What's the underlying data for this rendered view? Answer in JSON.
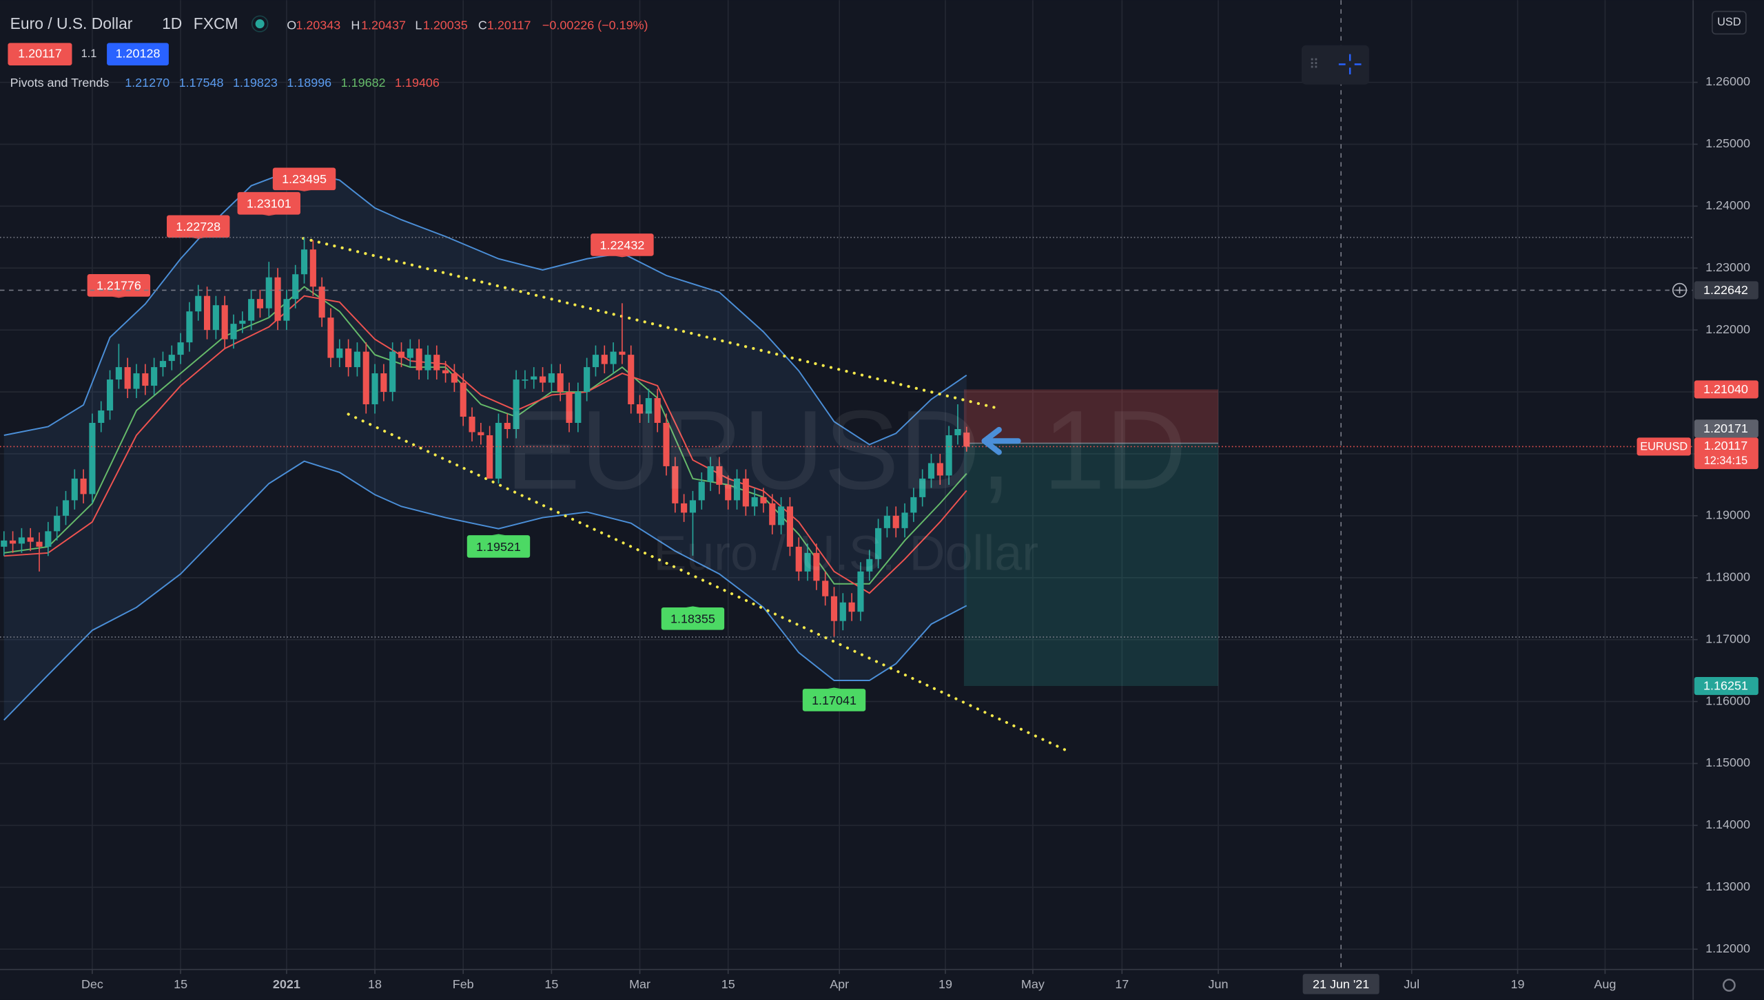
{
  "chart_data": {
    "type": "candlestick",
    "symbol": "Euro / U.S. Dollar",
    "interval": "1D",
    "source": "FXCM",
    "ohlc_letters": [
      "O",
      "H",
      "L",
      "C"
    ],
    "change": "−0.00226 (−0.19%)",
    "spread": 1.1,
    "ask": 1.20128,
    "indicator": {
      "name": "Pivots and Trends",
      "values": [
        {
          "value": 1.2127,
          "label": "1.21270"
        },
        1.17548,
        1.19823,
        1.18996,
        1.19682,
        1.19406
      ],
      "colors": [
        "#5b9cf0",
        "#5b9cf0",
        "#5b9cf0",
        "#5b9cf0",
        "#66bb6a",
        "#ef5350"
      ]
    },
    "watermark": "EURUSD, 1D",
    "watermark_sub": "Euro / U.S. Dollar",
    "symbol_label": "EURUSD",
    "countdown": "12:34:15",
    "currency": "USD",
    "up_color": "#26a69a",
    "down_color": "#ef5350",
    "grid": true,
    "xlim": [
      -10.45,
      181.27
    ],
    "ylim": [
      1.11673,
      1.27326
    ],
    "xticks": [
      {
        "value": 0,
        "label": "Dec"
      },
      {
        "value": 10,
        "label": "15"
      },
      {
        "value": 22,
        "label": "2021"
      },
      {
        "value": 32,
        "label": "18"
      },
      {
        "value": 42,
        "label": "Feb"
      },
      {
        "value": 52,
        "label": "15"
      },
      {
        "value": 62,
        "label": "Mar"
      },
      {
        "value": 72,
        "label": "15"
      },
      {
        "value": 84.6,
        "label": "Apr"
      },
      {
        "value": 96.6,
        "label": "19"
      },
      {
        "value": 106.5,
        "label": "May"
      },
      {
        "value": 116.6,
        "label": "17"
      },
      {
        "value": 127.5,
        "label": "Jun"
      },
      {
        "value": 149.4,
        "label": "Jul"
      },
      {
        "value": 161.4,
        "label": "19"
      },
      {
        "value": 171.3,
        "label": "Aug"
      }
    ],
    "yticks": [
      {
        "value": 1.12,
        "label": "1.12000"
      },
      {
        "value": 1.13,
        "label": "1.13000"
      },
      {
        "value": 1.14,
        "label": "1.14000"
      },
      {
        "value": 1.15,
        "label": "1.15000"
      },
      {
        "value": 1.16,
        "label": "1.16000"
      },
      {
        "value": 1.17,
        "label": "1.17000"
      },
      {
        "value": 1.18,
        "label": "1.18000"
      },
      {
        "value": 1.19,
        "label": "1.19000"
      },
      {
        "value": 1.2,
        "label": "1.20000"
      },
      {
        "value": 1.21,
        "label": "1.21000"
      },
      {
        "value": 1.22,
        "label": "1.22000"
      },
      {
        "value": 1.23,
        "label": "1.23000"
      },
      {
        "value": 1.24,
        "label": "1.24000"
      },
      {
        "value": 1.25,
        "label": "1.25000"
      },
      {
        "value": 1.26,
        "label": "1.26000"
      }
    ],
    "x": [
      -10,
      -9,
      -8,
      -7,
      -6,
      -5,
      -4,
      -3,
      -2,
      -1,
      0,
      1,
      2,
      3,
      4,
      5,
      6,
      7,
      8,
      9,
      10,
      11,
      12,
      13,
      14,
      15,
      16,
      17,
      18,
      19,
      20,
      21,
      22,
      23,
      24,
      25,
      26,
      27,
      28,
      29,
      30,
      31,
      32,
      33,
      34,
      35,
      36,
      37,
      38,
      39,
      40,
      41,
      42,
      43,
      44,
      45,
      46,
      47,
      48,
      49,
      50,
      51,
      52,
      53,
      54,
      55,
      56,
      57,
      58,
      59,
      60,
      61,
      62,
      63,
      64,
      65,
      66,
      67,
      68,
      69,
      70,
      71,
      72,
      73,
      74,
      75,
      76,
      77,
      78,
      79,
      80,
      81,
      82,
      83,
      84,
      85,
      86,
      87,
      88,
      89,
      90,
      91,
      92,
      93,
      94,
      95,
      96,
      97,
      98,
      99
    ],
    "candles": [
      [
        1.185,
        1.1875,
        1.1835,
        1.186
      ],
      [
        1.186,
        1.1875,
        1.184,
        1.1855
      ],
      [
        1.1855,
        1.188,
        1.184,
        1.1865
      ],
      [
        1.1865,
        1.188,
        1.1843,
        1.1858
      ],
      [
        1.1858,
        1.1873,
        1.181,
        1.185
      ],
      [
        1.185,
        1.189,
        1.1835,
        1.1875
      ],
      [
        1.1875,
        1.1915,
        1.186,
        1.19
      ],
      [
        1.19,
        1.194,
        1.1885,
        1.1925
      ],
      [
        1.1925,
        1.1975,
        1.191,
        1.196
      ],
      [
        1.196,
        1.1975,
        1.192,
        1.1935
      ],
      [
        1.1935,
        1.2065,
        1.192,
        1.205
      ],
      [
        1.205,
        1.2085,
        1.2035,
        1.207
      ],
      [
        1.207,
        1.2135,
        1.2055,
        1.212
      ],
      [
        1.212,
        1.21776,
        1.2105,
        1.214
      ],
      [
        1.214,
        1.2155,
        1.209,
        1.2105
      ],
      [
        1.2105,
        1.2145,
        1.209,
        1.213
      ],
      [
        1.213,
        1.2145,
        1.2095,
        1.211
      ],
      [
        1.211,
        1.2155,
        1.2095,
        1.214
      ],
      [
        1.214,
        1.2165,
        1.2125,
        1.215
      ],
      [
        1.215,
        1.2175,
        1.2135,
        1.216
      ],
      [
        1.216,
        1.2195,
        1.2145,
        1.218
      ],
      [
        1.218,
        1.2245,
        1.2165,
        1.223
      ],
      [
        1.223,
        1.22728,
        1.2215,
        1.2255
      ],
      [
        1.2255,
        1.227,
        1.2185,
        1.22
      ],
      [
        1.22,
        1.2255,
        1.2185,
        1.224
      ],
      [
        1.224,
        1.2255,
        1.217,
        1.2185
      ],
      [
        1.2185,
        1.2225,
        1.217,
        1.221
      ],
      [
        1.221,
        1.223,
        1.2195,
        1.2215
      ],
      [
        1.2215,
        1.2265,
        1.22,
        1.225
      ],
      [
        1.225,
        1.2265,
        1.222,
        1.2235
      ],
      [
        1.2235,
        1.23101,
        1.222,
        1.2285
      ],
      [
        1.2285,
        1.23,
        1.22,
        1.2215
      ],
      [
        1.2215,
        1.2265,
        1.22,
        1.225
      ],
      [
        1.225,
        1.2305,
        1.2235,
        1.229
      ],
      [
        1.229,
        1.23495,
        1.2275,
        1.233
      ],
      [
        1.233,
        1.2345,
        1.2255,
        1.227
      ],
      [
        1.227,
        1.2285,
        1.2205,
        1.222
      ],
      [
        1.222,
        1.2235,
        1.214,
        1.2155
      ],
      [
        1.2155,
        1.2185,
        1.214,
        1.217
      ],
      [
        1.217,
        1.2185,
        1.2125,
        1.214
      ],
      [
        1.214,
        1.218,
        1.2125,
        1.2165
      ],
      [
        1.2165,
        1.218,
        1.2065,
        1.208
      ],
      [
        1.208,
        1.2145,
        1.2065,
        1.213
      ],
      [
        1.213,
        1.2145,
        1.2085,
        1.21
      ],
      [
        1.21,
        1.218,
        1.2085,
        1.2165
      ],
      [
        1.2165,
        1.218,
        1.214,
        1.2155
      ],
      [
        1.2155,
        1.2185,
        1.214,
        1.217
      ],
      [
        1.217,
        1.2185,
        1.212,
        1.2135
      ],
      [
        1.2135,
        1.2175,
        1.212,
        1.216
      ],
      [
        1.216,
        1.2175,
        1.212,
        1.2135
      ],
      [
        1.2135,
        1.215,
        1.2115,
        1.213
      ],
      [
        1.213,
        1.2145,
        1.21,
        1.2115
      ],
      [
        1.2115,
        1.213,
        1.2045,
        1.206
      ],
      [
        1.206,
        1.2075,
        1.202,
        1.2035
      ],
      [
        1.2035,
        1.205,
        1.2015,
        1.203
      ],
      [
        1.203,
        1.2045,
        1.1975,
        1.196
      ],
      [
        1.196,
        1.2065,
        1.19521,
        1.205
      ],
      [
        1.205,
        1.2065,
        1.2025,
        1.204
      ],
      [
        1.204,
        1.2135,
        1.2025,
        1.212
      ],
      [
        1.212,
        1.2135,
        1.2105,
        1.212
      ],
      [
        1.212,
        1.214,
        1.2105,
        1.2125
      ],
      [
        1.2125,
        1.214,
        1.21,
        1.2115
      ],
      [
        1.2115,
        1.2145,
        1.21,
        1.213
      ],
      [
        1.213,
        1.2145,
        1.2085,
        1.21
      ],
      [
        1.21,
        1.2115,
        1.2035,
        1.205
      ],
      [
        1.205,
        1.2115,
        1.2035,
        1.21
      ],
      [
        1.21,
        1.2155,
        1.2085,
        1.214
      ],
      [
        1.214,
        1.2175,
        1.2125,
        1.216
      ],
      [
        1.216,
        1.2175,
        1.213,
        1.2145
      ],
      [
        1.2145,
        1.218,
        1.213,
        1.2165
      ],
      [
        1.2165,
        1.22432,
        1.2145,
        1.216
      ],
      [
        1.216,
        1.2175,
        1.2065,
        1.208
      ],
      [
        1.208,
        1.2095,
        1.205,
        1.2065
      ],
      [
        1.2065,
        1.2105,
        1.205,
        1.209
      ],
      [
        1.209,
        1.2105,
        1.2035,
        1.205
      ],
      [
        1.205,
        1.2065,
        1.1965,
        1.198
      ],
      [
        1.198,
        1.1995,
        1.1905,
        1.192
      ],
      [
        1.192,
        1.1935,
        1.189,
        1.1905
      ],
      [
        1.1905,
        1.194,
        1.18355,
        1.1925
      ],
      [
        1.1925,
        1.197,
        1.191,
        1.1955
      ],
      [
        1.1955,
        1.1995,
        1.194,
        1.198
      ],
      [
        1.198,
        1.1995,
        1.1935,
        1.195
      ],
      [
        1.195,
        1.1965,
        1.191,
        1.1925
      ],
      [
        1.1925,
        1.1975,
        1.191,
        1.196
      ],
      [
        1.196,
        1.1975,
        1.19,
        1.1915
      ],
      [
        1.1915,
        1.1945,
        1.19,
        1.193
      ],
      [
        1.193,
        1.1945,
        1.1905,
        1.192
      ],
      [
        1.192,
        1.1935,
        1.187,
        1.1885
      ],
      [
        1.1885,
        1.193,
        1.187,
        1.1915
      ],
      [
        1.1915,
        1.193,
        1.1835,
        1.185
      ],
      [
        1.185,
        1.1865,
        1.1795,
        1.181
      ],
      [
        1.181,
        1.1855,
        1.1795,
        1.184
      ],
      [
        1.184,
        1.1855,
        1.178,
        1.1795
      ],
      [
        1.1795,
        1.181,
        1.1755,
        1.177
      ],
      [
        1.177,
        1.1785,
        1.17041,
        1.173
      ],
      [
        1.173,
        1.1775,
        1.1715,
        1.176
      ],
      [
        1.176,
        1.1775,
        1.173,
        1.1745
      ],
      [
        1.1745,
        1.1825,
        1.173,
        1.181
      ],
      [
        1.181,
        1.1845,
        1.1795,
        1.183
      ],
      [
        1.183,
        1.1895,
        1.1815,
        1.188
      ],
      [
        1.188,
        1.1915,
        1.1865,
        1.19
      ],
      [
        1.19,
        1.1915,
        1.1865,
        1.188
      ],
      [
        1.188,
        1.192,
        1.1865,
        1.1905
      ],
      [
        1.1905,
        1.1945,
        1.189,
        1.193
      ],
      [
        1.193,
        1.1975,
        1.1915,
        1.196
      ],
      [
        1.196,
        1.2,
        1.1945,
        1.1985
      ],
      [
        1.1985,
        1.2,
        1.195,
        1.1965
      ],
      [
        1.1965,
        1.2045,
        1.195,
        1.203
      ],
      [
        1.203,
        1.208,
        1.2015,
        1.204
      ],
      [
        1.20343,
        1.20437,
        1.20035,
        1.20117
      ]
    ],
    "lines": [
      {
        "color": "#4b8fd8",
        "x": [
          -10,
          -5,
          -1,
          2,
          6,
          10,
          14,
          18,
          23,
          28,
          32,
          35,
          40,
          46,
          51,
          56,
          60,
          65,
          71,
          76,
          80,
          84,
          88,
          91,
          95,
          99
        ],
        "values": [
          1.203,
          1.2044,
          1.2079,
          1.2188,
          1.2242,
          1.2315,
          1.2378,
          1.2433,
          1.246,
          1.2442,
          1.2397,
          1.2378,
          1.2351,
          1.2315,
          1.2297,
          1.2315,
          1.2324,
          1.2288,
          1.2261,
          1.2197,
          1.2134,
          1.2052,
          1.2015,
          1.2033,
          1.2088,
          1.2127
        ]
      },
      {
        "color": "#4b8fd8",
        "x": [
          -10,
          -5,
          0,
          5,
          10,
          15,
          20,
          24,
          28,
          32,
          35,
          40,
          46,
          51,
          56,
          61,
          66,
          71,
          76,
          80,
          84,
          88,
          91,
          95,
          99
        ],
        "values": [
          1.157,
          1.1643,
          1.1715,
          1.1752,
          1.1806,
          1.1879,
          1.1952,
          1.1988,
          1.197,
          1.1934,
          1.1915,
          1.1897,
          1.1879,
          1.1897,
          1.1906,
          1.1888,
          1.1843,
          1.1806,
          1.1752,
          1.1679,
          1.1634,
          1.1634,
          1.1661,
          1.1725,
          1.17548
        ]
      },
      {
        "color": "#66bb6a",
        "x": [
          -10,
          -5,
          0,
          5,
          10,
          15,
          20,
          24,
          28,
          32,
          36,
          40,
          44,
          48,
          52,
          56,
          60,
          64,
          68,
          72,
          76,
          80,
          84,
          88,
          92,
          96,
          99
        ],
        "values": [
          1.184,
          1.185,
          1.192,
          1.207,
          1.213,
          1.219,
          1.222,
          1.227,
          1.223,
          1.216,
          1.214,
          1.214,
          1.208,
          1.206,
          1.21,
          1.21,
          1.214,
          1.209,
          1.196,
          1.195,
          1.193,
          1.187,
          1.179,
          1.179,
          1.186,
          1.192,
          1.19682
        ]
      },
      {
        "color": "#ef5350",
        "x": [
          -10,
          -5,
          0,
          5,
          10,
          15,
          20,
          24,
          28,
          32,
          36,
          40,
          44,
          48,
          52,
          56,
          60,
          64,
          68,
          72,
          76,
          80,
          84,
          88,
          92,
          96,
          99
        ],
        "values": [
          1.1835,
          1.184,
          1.189,
          1.203,
          1.211,
          1.217,
          1.2205,
          1.2255,
          1.2245,
          1.2185,
          1.215,
          1.2145,
          1.2095,
          1.207,
          1.2095,
          1.21,
          1.213,
          1.211,
          1.199,
          1.196,
          1.194,
          1.189,
          1.181,
          1.1775,
          1.183,
          1.189,
          1.19406
        ]
      }
    ],
    "trendlines": [
      {
        "color": "#f5e94b",
        "x": [
          23.9,
          102.7
        ],
        "y": [
          1.2348,
          1.2073
        ]
      },
      {
        "color": "#f5e94b",
        "x": [
          29,
          110.3
        ],
        "y": [
          1.2064,
          1.1521
        ]
      }
    ],
    "pivots": [
      {
        "x": 3,
        "value": 1.21776,
        "kind": "high"
      },
      {
        "x": 12,
        "value": 1.22728,
        "kind": "high"
      },
      {
        "x": 20,
        "value": 1.23101,
        "kind": "high"
      },
      {
        "x": 24,
        "value": 1.23495,
        "kind": "high",
        "extend": true
      },
      {
        "x": 60,
        "value": 1.22432,
        "kind": "high"
      },
      {
        "x": 46,
        "value": 1.19521,
        "kind": "low"
      },
      {
        "x": 68,
        "value": 1.18355,
        "kind": "low"
      },
      {
        "x": 84,
        "value": 1.17041,
        "kind": "low",
        "extend": true
      }
    ],
    "position": {
      "x": [
        98.7,
        127.5
      ],
      "stop": {
        "value": 1.2104,
        "label": "1.21040"
      },
      "entry": 1.20171,
      "target": 1.16251
    },
    "crosshair": {
      "y": 1.22642,
      "x": {
        "value": 141.4,
        "label": "21 Jun '21"
      }
    }
  }
}
